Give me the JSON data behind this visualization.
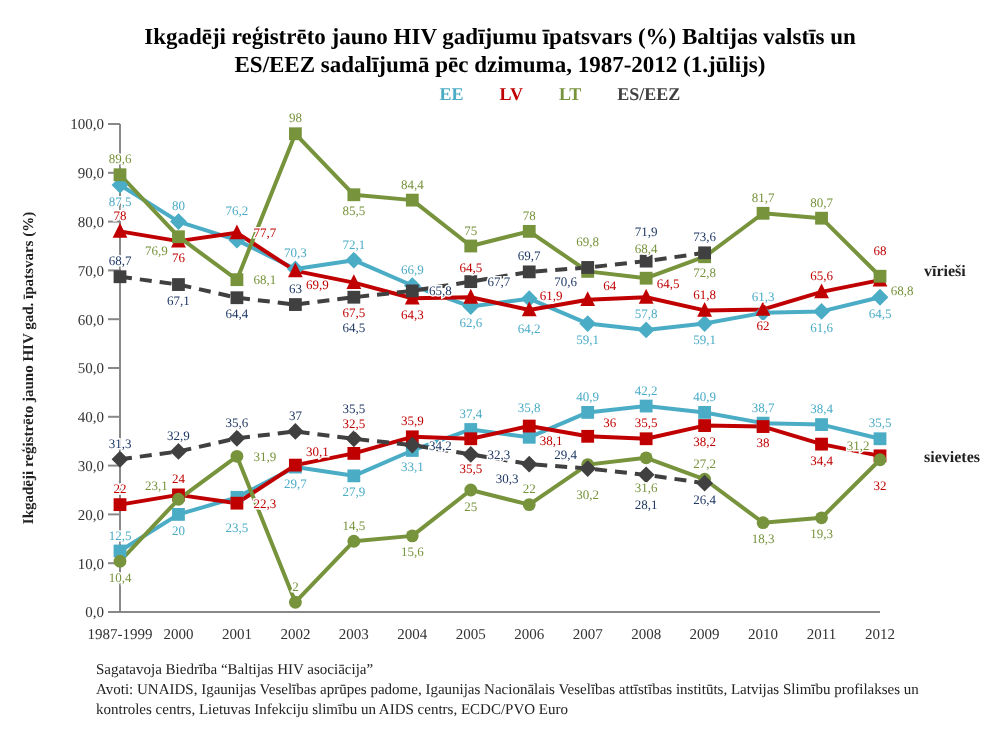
{
  "chart_data": {
    "type": "line",
    "title": "Ikgadēji reģistrēto jauno HIV gadījumu īpatsvars (%) Baltijas valstīs un ES/EEZ sadalījumā pēc dzimuma, 1987-2012 (1.jūlijs)",
    "ylabel": "Ikgadēji reģistrēto jauno HIV gad. īpatsvars (%)",
    "categories": [
      "1987-1999",
      "2000",
      "2001",
      "2002",
      "2003",
      "2004",
      "2005",
      "2006",
      "2007",
      "2008",
      "2009",
      "2010",
      "2011",
      "2012"
    ],
    "series": [
      {
        "name": "EE",
        "color": "#4bacc6",
        "marker": "diamond",
        "values": [
          87.5,
          80,
          76.2,
          70.3,
          72.1,
          66.9,
          62.6,
          64.2,
          59.1,
          57.8,
          59.1,
          61.3,
          61.6,
          64.5
        ],
        "value_labels": [
          "87,5",
          "80",
          "76,2",
          "70,3",
          "72,1",
          "66,9",
          "62,6",
          "64,2",
          "59,1",
          "57,8",
          "59,1",
          "61,3",
          "61,6",
          "64,5"
        ]
      },
      {
        "name": "LV",
        "color": "#c00000",
        "marker": "triangle",
        "values": [
          78,
          76,
          77.7,
          69.9,
          67.5,
          64.3,
          64.5,
          61.9,
          64,
          64.5,
          61.8,
          62,
          65.6,
          68
        ],
        "value_labels": [
          "78",
          "76",
          "77,7",
          "69,9",
          "67,5",
          "64,3",
          "64,5",
          "61,9",
          "64",
          "64,5",
          "61,8",
          "62",
          "65,6",
          "68"
        ]
      },
      {
        "name": "LT",
        "color": "#77933c",
        "marker": "square",
        "values": [
          89.6,
          76.9,
          68.1,
          98,
          85.5,
          84.4,
          75,
          78,
          69.8,
          68.4,
          72.8,
          81.7,
          80.7,
          68.8
        ],
        "value_labels": [
          "89,6",
          "76,9",
          "68,1",
          "98",
          "85,5",
          "84,4",
          "75",
          "78",
          "69,8",
          "68,4",
          "72,8",
          "81,7",
          "80,7",
          "68,8"
        ]
      },
      {
        "name": "ES/EEZ",
        "color": "#404040",
        "marker": "square",
        "line_style": "dashed",
        "values": [
          68.7,
          67.1,
          64.4,
          63,
          64.5,
          65.8,
          67.7,
          69.7,
          70.6,
          71.9,
          73.6,
          null,
          null,
          null
        ],
        "value_labels": [
          "68,7",
          "67,1",
          "64,4",
          "63",
          "64,5",
          "65,8",
          "67,7",
          "69,7",
          "70,6",
          "71,9",
          "73,6",
          null,
          null,
          null
        ]
      },
      {
        "color": "#4bacc6",
        "marker": "square",
        "values": [
          12.5,
          20,
          23.5,
          29.7,
          27.9,
          33.1,
          37.4,
          35.8,
          40.9,
          42.2,
          40.9,
          38.7,
          38.4,
          35.5
        ],
        "value_labels": [
          "12,5",
          "20",
          "23,5",
          "29,7",
          "27,9",
          "33,1",
          "37,4",
          "35,8",
          "40,9",
          "42,2",
          "40,9",
          "38,7",
          "38,4",
          "35,5"
        ]
      },
      {
        "color": "#c00000",
        "marker": "square",
        "values": [
          22,
          24,
          22.3,
          30.1,
          32.5,
          35.9,
          35.5,
          38.1,
          36,
          35.5,
          38.2,
          38,
          34.4,
          32
        ],
        "value_labels": [
          "22",
          "24",
          "22,3",
          "30,1",
          "32,5",
          "35,9",
          "35,5",
          "38,1",
          "36",
          "35,5",
          "38,2",
          "38",
          "34,4",
          "32"
        ]
      },
      {
        "color": "#77933c",
        "marker": "circle",
        "values": [
          10.4,
          23.1,
          31.9,
          2,
          14.5,
          15.6,
          25,
          22,
          30.2,
          31.6,
          27.2,
          18.3,
          19.3,
          31.2
        ],
        "value_labels": [
          "10,4",
          "23,1",
          "31,9",
          "2",
          "14,5",
          "15,6",
          "25",
          "22",
          "30,2",
          "31,6",
          "27,2",
          "18,3",
          "19,3",
          "31,2"
        ]
      },
      {
        "color": "#404040",
        "marker": "diamond",
        "line_style": "dashed",
        "values": [
          31.3,
          32.9,
          35.6,
          37,
          35.5,
          34.2,
          32.3,
          30.3,
          29.4,
          28.1,
          26.4,
          null,
          null,
          null
        ],
        "value_labels": [
          "31,3",
          "32,9",
          "35,6",
          "37",
          "35,5",
          "34,2",
          "32,3",
          "30,3",
          "29,4",
          "28,1",
          "26,4",
          null,
          null,
          null
        ]
      }
    ],
    "ylim": [
      0,
      100
    ],
    "yticks": [
      {
        "value": 0,
        "label": "0,0"
      },
      {
        "value": 10,
        "label": "10,0"
      },
      {
        "value": 20,
        "label": "20,0"
      },
      {
        "value": 30,
        "label": "30,0"
      },
      {
        "value": 40,
        "label": "40,0"
      },
      {
        "value": 50,
        "label": "50,0"
      },
      {
        "value": 60,
        "label": "60,0"
      },
      {
        "value": 70,
        "label": "70,0"
      },
      {
        "value": 80,
        "label": "80,0"
      },
      {
        "value": 90,
        "label": "90,0"
      },
      {
        "value": 100,
        "label": "100,0"
      }
    ],
    "grid": false,
    "legend": "top",
    "annotations": [
      {
        "text": "vīrieši",
        "x": "2012",
        "y": 70
      },
      {
        "text": "sievietes",
        "x": "2012",
        "y": 32
      },
      "Sagatavoja Biedrība “Baltijas HIV asociācija”",
      "Avoti: UNAIDS, Igaunijas Veselības aprūpes padome, Igaunijas Nacionālais Veselības attīstības institūts, Latvijas Slimību profilakses un kontroles centrs, Lietuvas Infekciju slimību un AIDS centrs, ECDC/PVO Euro"
    ]
  }
}
